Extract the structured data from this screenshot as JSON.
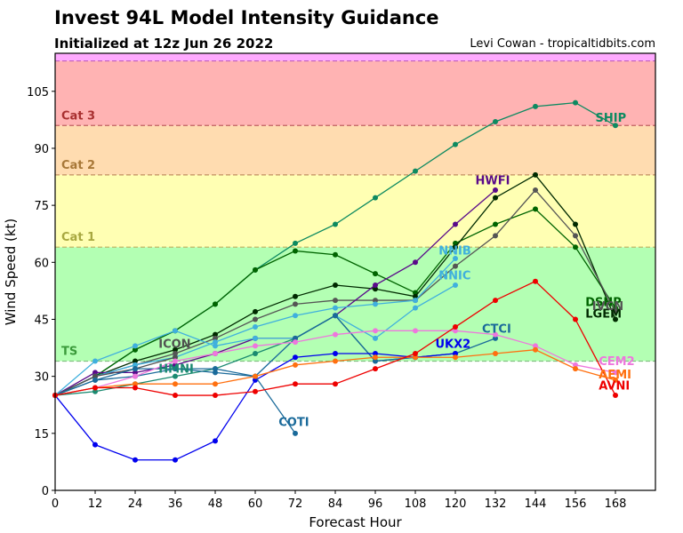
{
  "chart_data": {
    "type": "line",
    "title": "Invest 94L Model Intensity Guidance",
    "subtitle": "Initialized at 12z Jun 26 2022",
    "credit": "Levi Cowan - tropicaltidbits.com",
    "xlabel": "Forecast Hour",
    "ylabel": "Wind Speed (kt)",
    "xlim": [
      0,
      180
    ],
    "ylim": [
      0,
      115
    ],
    "xticks": [
      0,
      12,
      24,
      36,
      48,
      60,
      72,
      84,
      96,
      108,
      120,
      132,
      144,
      156,
      168
    ],
    "yticks": [
      0,
      15,
      30,
      45,
      60,
      75,
      90,
      105
    ],
    "bands": [
      {
        "name": "TS",
        "from": 34,
        "to": 64,
        "fill": "#b3ffb3",
        "line": "#7fbf7f",
        "label_color": "#3a9a3a"
      },
      {
        "name": "Cat 1",
        "from": 64,
        "to": 83,
        "fill": "#ffffb3",
        "line": "#c0b060",
        "label_color": "#a8a840"
      },
      {
        "name": "Cat 2",
        "from": 83,
        "to": 96,
        "fill": "#ffdcb0",
        "line": "#c09060",
        "label_color": "#a87838"
      },
      {
        "name": "Cat 3",
        "from": 96,
        "to": 113,
        "fill": "#ffb3b3",
        "line": "#c06060",
        "label_color": "#a83030"
      },
      {
        "name": "",
        "from": 113,
        "to": 115,
        "fill": "#ffaaff",
        "line": "#c060c0",
        "label_color": "#a040a0"
      }
    ],
    "series": [
      {
        "name": "SHIP",
        "color": "#0d8a60",
        "x": [
          0,
          12,
          24,
          36,
          48,
          60,
          72,
          84,
          96,
          108,
          120,
          132,
          144,
          156,
          168
        ],
        "values": [
          25,
          30,
          37,
          42,
          49,
          58,
          65,
          70,
          77,
          84,
          91,
          97,
          101,
          102,
          96
        ],
        "label_at": [
          162,
          97
        ]
      },
      {
        "name": "DSHP",
        "color": "#006400",
        "x": [
          0,
          12,
          24,
          36,
          48,
          60,
          72,
          84,
          96,
          108,
          120,
          132,
          144,
          156,
          168
        ],
        "values": [
          25,
          30,
          37,
          42,
          49,
          58,
          63,
          62,
          57,
          52,
          65,
          70,
          74,
          64,
          48
        ],
        "label_at": [
          159,
          48.5
        ]
      },
      {
        "name": "LGEM",
        "color": "#002a00",
        "x": [
          0,
          12,
          24,
          36,
          48,
          60,
          72,
          84,
          96,
          108,
          120,
          132,
          144,
          156,
          168
        ],
        "values": [
          25,
          30,
          34,
          37,
          41,
          47,
          51,
          54,
          53,
          51,
          64,
          77,
          83,
          70,
          45
        ],
        "label_at": [
          159,
          45.5
        ]
      },
      {
        "name": "IVCN",
        "color": "#555555",
        "x": [
          0,
          12,
          24,
          36,
          48,
          60,
          72,
          84,
          96,
          108,
          120,
          132,
          144,
          156,
          168
        ],
        "values": [
          25,
          30,
          33,
          36,
          40,
          45,
          49,
          50,
          50,
          50,
          59,
          67,
          79,
          67,
          47
        ],
        "label_at": [
          161,
          47.5
        ]
      },
      {
        "name": "HWFI",
        "color": "#5a0a8a",
        "x": [
          0,
          12,
          24,
          36,
          48,
          60,
          72,
          84,
          96,
          108,
          120,
          132
        ],
        "values": [
          25,
          31,
          31,
          33,
          36,
          40,
          40,
          46,
          54,
          60,
          70,
          79
        ],
        "label_at": [
          126,
          80.5
        ]
      },
      {
        "name": "NNIB",
        "color": "#40b0dd",
        "x": [
          0,
          12,
          24,
          36,
          48,
          60,
          72,
          84,
          96,
          108,
          120
        ],
        "values": [
          25,
          30,
          33,
          35,
          39,
          43,
          46,
          48,
          49,
          50,
          61
        ],
        "label_at": [
          115,
          62
        ]
      },
      {
        "name": "NNIC",
        "color": "#40b0dd",
        "x": [
          0,
          12,
          24,
          36,
          48,
          60,
          72,
          84,
          96,
          108,
          120
        ],
        "values": [
          25,
          34,
          38,
          42,
          38,
          40,
          40,
          46,
          40,
          48,
          54
        ],
        "label_at": [
          115,
          55.5
        ]
      },
      {
        "name": "ICON",
        "color": "#505050",
        "x": [
          0,
          12,
          24,
          36
        ],
        "values": [
          25,
          30,
          32,
          35
        ],
        "label_at": [
          31,
          37.5
        ]
      },
      {
        "name": "HMNI",
        "color": "#1a8a70",
        "x": [
          0,
          12,
          24,
          36,
          48,
          60,
          72,
          84,
          96,
          108,
          120
        ],
        "values": [
          25,
          26,
          28,
          30,
          32,
          36,
          40,
          46,
          34,
          35,
          36
        ],
        "label_at": [
          31,
          31
        ]
      },
      {
        "name": "CTCI",
        "color": "#1a6a9a",
        "x": [
          0,
          12,
          24,
          36,
          48,
          60,
          72,
          84,
          96,
          108,
          120,
          132
        ],
        "values": [
          25,
          29,
          30,
          32,
          31,
          30,
          40,
          46,
          34,
          35,
          36,
          40
        ],
        "label_at": [
          128,
          41.5
        ]
      },
      {
        "name": "UKX2",
        "color": "#0000ee",
        "x": [
          0,
          12,
          24,
          36,
          48,
          60,
          72,
          84,
          96,
          108,
          120
        ],
        "values": [
          25,
          12,
          8,
          8,
          13,
          29,
          35,
          36,
          36,
          35,
          36
        ],
        "label_at": [
          114,
          37.5
        ]
      },
      {
        "name": "COTI",
        "color": "#1a6a9a",
        "x": [
          0,
          12,
          24,
          36,
          48,
          60,
          72
        ],
        "values": [
          25,
          29,
          32,
          32,
          32,
          30,
          15
        ],
        "label_at": [
          67,
          17
        ]
      },
      {
        "name": "CEM2",
        "color": "#ee77dd",
        "x": [
          0,
          12,
          24,
          36,
          48,
          60,
          72,
          84,
          96,
          108,
          120,
          132,
          144,
          156,
          168
        ],
        "values": [
          25,
          27,
          30,
          34,
          36,
          38,
          39,
          41,
          42,
          42,
          42,
          41,
          38,
          33,
          31
        ],
        "label_at": [
          163,
          33
        ]
      },
      {
        "name": "AEMI",
        "color": "#ff7010",
        "x": [
          0,
          12,
          24,
          36,
          48,
          60,
          72,
          84,
          96,
          108,
          120,
          132,
          144,
          156,
          168
        ],
        "values": [
          25,
          27,
          28,
          28,
          28,
          30,
          33,
          34,
          35,
          35,
          35,
          36,
          37,
          32,
          29
        ],
        "label_at": [
          163,
          29.5
        ]
      },
      {
        "name": "AVNI",
        "color": "#ee0000",
        "x": [
          0,
          12,
          24,
          36,
          48,
          60,
          72,
          84,
          96,
          108,
          120,
          132,
          144,
          156,
          168
        ],
        "values": [
          25,
          27,
          27,
          25,
          25,
          26,
          28,
          28,
          32,
          36,
          43,
          50,
          55,
          45,
          25
        ],
        "label_at": [
          163,
          26.5
        ]
      }
    ]
  }
}
